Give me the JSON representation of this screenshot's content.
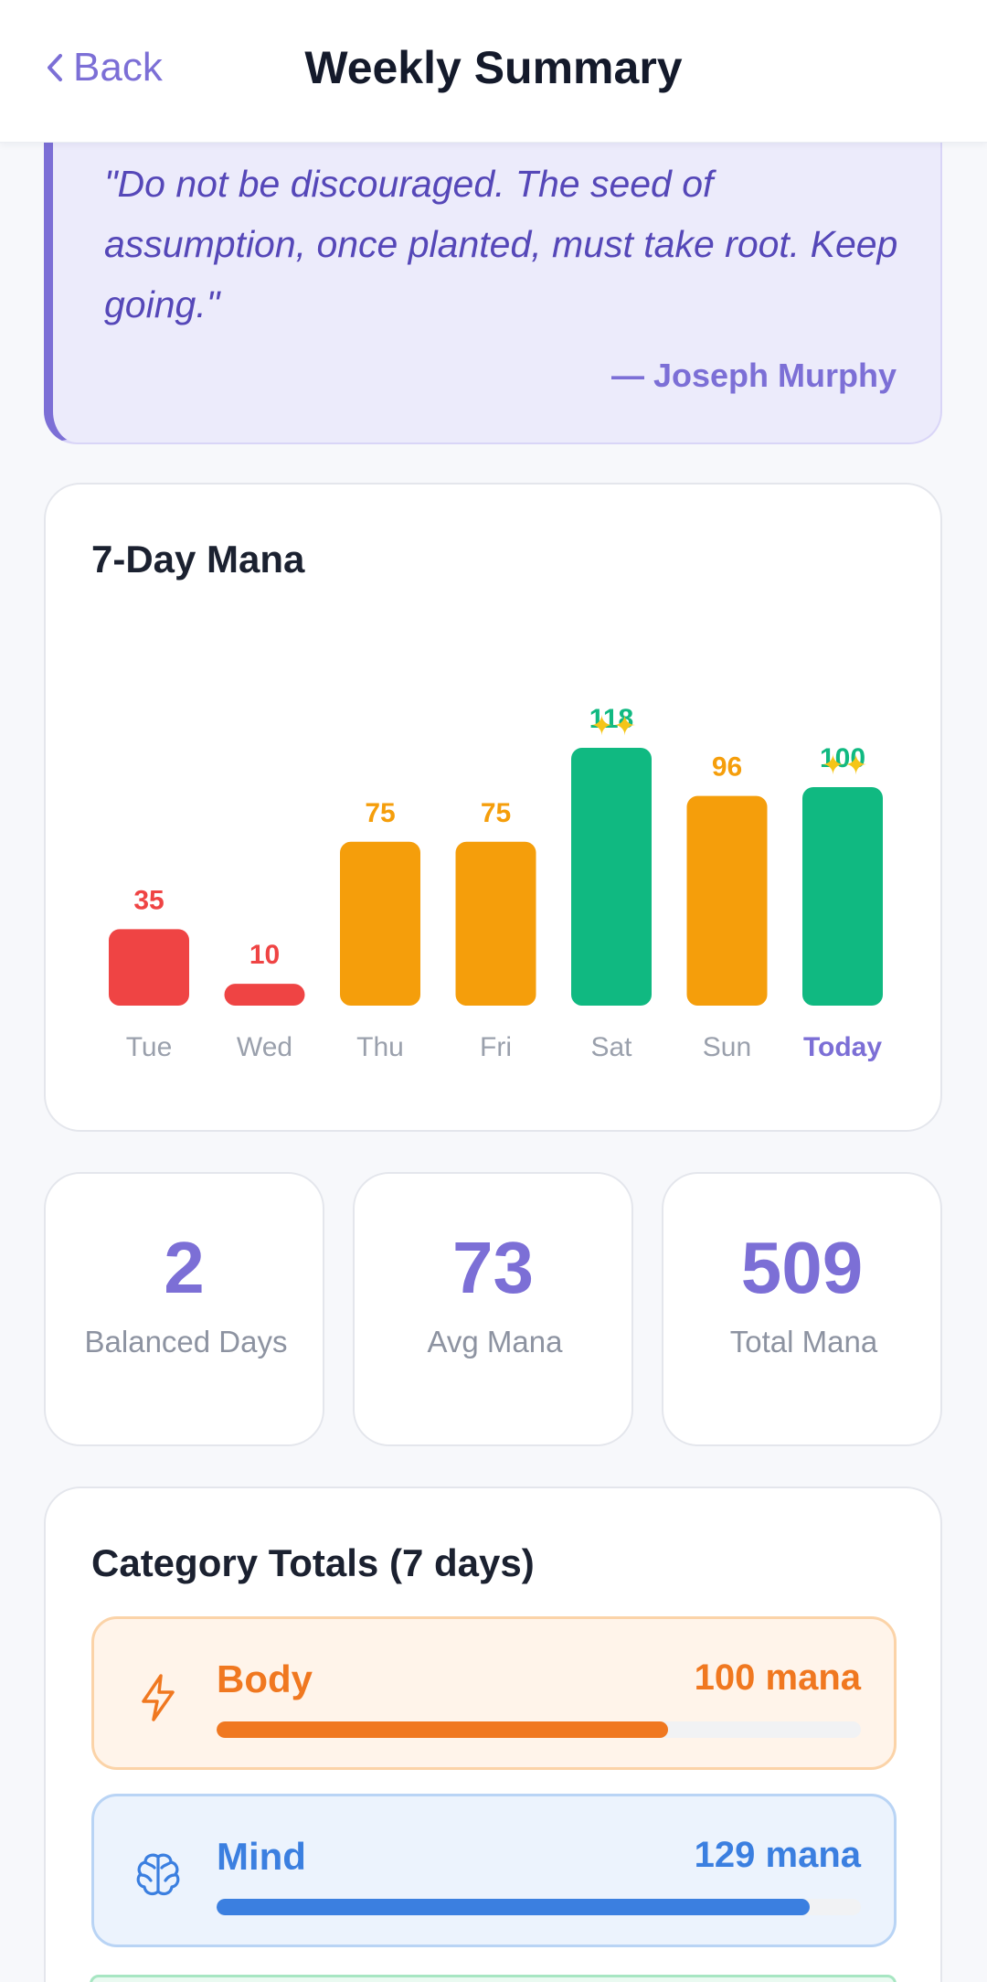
{
  "header": {
    "back_label": "Back",
    "title": "Weekly Summary"
  },
  "quote": {
    "text": "\"Do not be discouraged. The seed of assumption, once planted, must take root. Keep going.\"",
    "author": "— Joseph Murphy"
  },
  "chart_data": {
    "type": "bar",
    "title": "7-Day Mana",
    "categories": [
      "Tue",
      "Wed",
      "Thu",
      "Fri",
      "Sat",
      "Sun",
      "Today"
    ],
    "values": [
      35,
      10,
      75,
      75,
      118,
      96,
      100
    ],
    "bar_colors": [
      "#ef4444",
      "#ef4444",
      "#f59e0b",
      "#f59e0b",
      "#10b981",
      "#f59e0b",
      "#10b981"
    ],
    "sparkle_on": [
      "Sat",
      "Today"
    ],
    "highlight_category": "Today",
    "highlight_color": "#7c6fd6",
    "ylim": [
      0,
      118
    ]
  },
  "stats": [
    {
      "value": "2",
      "label": "Balanced Days"
    },
    {
      "value": "73",
      "label": "Avg Mana"
    },
    {
      "value": "509",
      "label": "Total Mana"
    }
  ],
  "categories": {
    "title": "Category Totals (7 days)",
    "items": [
      {
        "name": "Body",
        "value": "100 mana",
        "fill": 0.7,
        "icon": "lightning-icon",
        "color": "#f07820",
        "bg": "#fff4ea",
        "border": "#fbd3a8"
      },
      {
        "name": "Mind",
        "value": "129 mana",
        "fill": 0.92,
        "icon": "brain-icon",
        "color": "#3b7fe0",
        "bg": "#ecf3fd",
        "border": "#b9d4f5"
      }
    ]
  },
  "colors": {
    "accent": "#7c6fd6",
    "low": "#ef4444",
    "mid": "#f59e0b",
    "high": "#10b981"
  }
}
